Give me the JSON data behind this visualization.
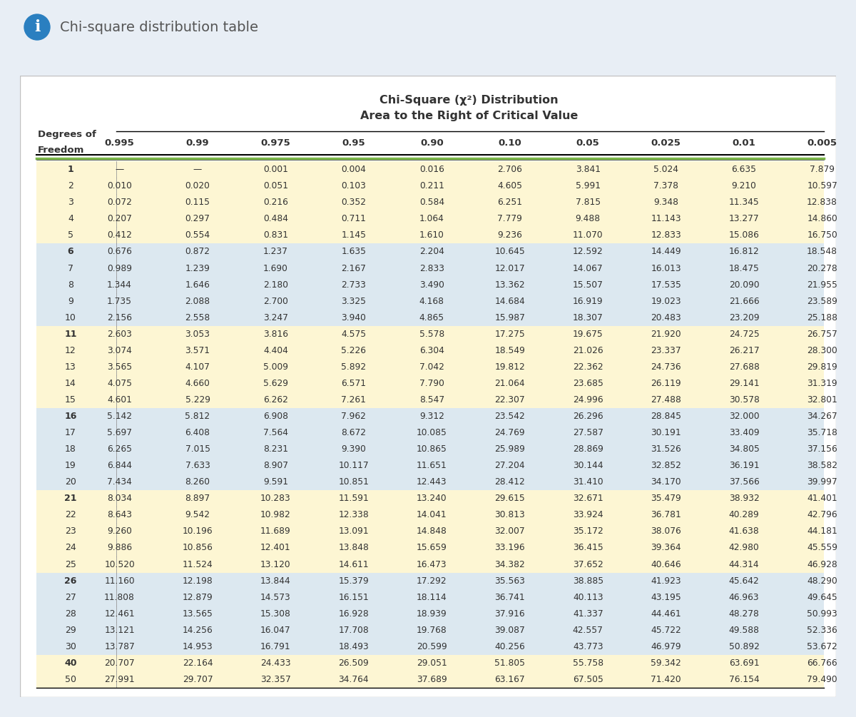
{
  "title_line1": "Chi-Square (χ²) Distribution",
  "title_line2": "Area to the Right of Critical Value",
  "info_header_text": "Chi-square distribution table",
  "col_headers": [
    "0.995",
    "0.99",
    "0.975",
    "0.95",
    "0.90",
    "0.10",
    "0.05",
    "0.025",
    "0.01",
    "0.005"
  ],
  "rows": [
    [
      "1",
      "—",
      "—",
      "0.001",
      "0.004",
      "0.016",
      "2.706",
      "3.841",
      "5.024",
      "6.635",
      "7.879"
    ],
    [
      "2",
      "0.010",
      "0.020",
      "0.051",
      "0.103",
      "0.211",
      "4.605",
      "5.991",
      "7.378",
      "9.210",
      "10.597"
    ],
    [
      "3",
      "0.072",
      "0.115",
      "0.216",
      "0.352",
      "0.584",
      "6.251",
      "7.815",
      "9.348",
      "11.345",
      "12.838"
    ],
    [
      "4",
      "0.207",
      "0.297",
      "0.484",
      "0.711",
      "1.064",
      "7.779",
      "9.488",
      "11.143",
      "13.277",
      "14.860"
    ],
    [
      "5",
      "0.412",
      "0.554",
      "0.831",
      "1.145",
      "1.610",
      "9.236",
      "11.070",
      "12.833",
      "15.086",
      "16.750"
    ],
    [
      "6",
      "0.676",
      "0.872",
      "1.237",
      "1.635",
      "2.204",
      "10.645",
      "12.592",
      "14.449",
      "16.812",
      "18.548"
    ],
    [
      "7",
      "0.989",
      "1.239",
      "1.690",
      "2.167",
      "2.833",
      "12.017",
      "14.067",
      "16.013",
      "18.475",
      "20.278"
    ],
    [
      "8",
      "1.344",
      "1.646",
      "2.180",
      "2.733",
      "3.490",
      "13.362",
      "15.507",
      "17.535",
      "20.090",
      "21.955"
    ],
    [
      "9",
      "1.735",
      "2.088",
      "2.700",
      "3.325",
      "4.168",
      "14.684",
      "16.919",
      "19.023",
      "21.666",
      "23.589"
    ],
    [
      "10",
      "2.156",
      "2.558",
      "3.247",
      "3.940",
      "4.865",
      "15.987",
      "18.307",
      "20.483",
      "23.209",
      "25.188"
    ],
    [
      "11",
      "2.603",
      "3.053",
      "3.816",
      "4.575",
      "5.578",
      "17.275",
      "19.675",
      "21.920",
      "24.725",
      "26.757"
    ],
    [
      "12",
      "3.074",
      "3.571",
      "4.404",
      "5.226",
      "6.304",
      "18.549",
      "21.026",
      "23.337",
      "26.217",
      "28.300"
    ],
    [
      "13",
      "3.565",
      "4.107",
      "5.009",
      "5.892",
      "7.042",
      "19.812",
      "22.362",
      "24.736",
      "27.688",
      "29.819"
    ],
    [
      "14",
      "4.075",
      "4.660",
      "5.629",
      "6.571",
      "7.790",
      "21.064",
      "23.685",
      "26.119",
      "29.141",
      "31.319"
    ],
    [
      "15",
      "4.601",
      "5.229",
      "6.262",
      "7.261",
      "8.547",
      "22.307",
      "24.996",
      "27.488",
      "30.578",
      "32.801"
    ],
    [
      "16",
      "5.142",
      "5.812",
      "6.908",
      "7.962",
      "9.312",
      "23.542",
      "26.296",
      "28.845",
      "32.000",
      "34.267"
    ],
    [
      "17",
      "5.697",
      "6.408",
      "7.564",
      "8.672",
      "10.085",
      "24.769",
      "27.587",
      "30.191",
      "33.409",
      "35.718"
    ],
    [
      "18",
      "6.265",
      "7.015",
      "8.231",
      "9.390",
      "10.865",
      "25.989",
      "28.869",
      "31.526",
      "34.805",
      "37.156"
    ],
    [
      "19",
      "6.844",
      "7.633",
      "8.907",
      "10.117",
      "11.651",
      "27.204",
      "30.144",
      "32.852",
      "36.191",
      "38.582"
    ],
    [
      "20",
      "7.434",
      "8.260",
      "9.591",
      "10.851",
      "12.443",
      "28.412",
      "31.410",
      "34.170",
      "37.566",
      "39.997"
    ],
    [
      "21",
      "8.034",
      "8.897",
      "10.283",
      "11.591",
      "13.240",
      "29.615",
      "32.671",
      "35.479",
      "38.932",
      "41.401"
    ],
    [
      "22",
      "8.643",
      "9.542",
      "10.982",
      "12.338",
      "14.041",
      "30.813",
      "33.924",
      "36.781",
      "40.289",
      "42.796"
    ],
    [
      "23",
      "9.260",
      "10.196",
      "11.689",
      "13.091",
      "14.848",
      "32.007",
      "35.172",
      "38.076",
      "41.638",
      "44.181"
    ],
    [
      "24",
      "9.886",
      "10.856",
      "12.401",
      "13.848",
      "15.659",
      "33.196",
      "36.415",
      "39.364",
      "42.980",
      "45.559"
    ],
    [
      "25",
      "10.520",
      "11.524",
      "13.120",
      "14.611",
      "16.473",
      "34.382",
      "37.652",
      "40.646",
      "44.314",
      "46.928"
    ],
    [
      "26",
      "11.160",
      "12.198",
      "13.844",
      "15.379",
      "17.292",
      "35.563",
      "38.885",
      "41.923",
      "45.642",
      "48.290"
    ],
    [
      "27",
      "11.808",
      "12.879",
      "14.573",
      "16.151",
      "18.114",
      "36.741",
      "40.113",
      "43.195",
      "46.963",
      "49.645"
    ],
    [
      "28",
      "12.461",
      "13.565",
      "15.308",
      "16.928",
      "18.939",
      "37.916",
      "41.337",
      "44.461",
      "48.278",
      "50.993"
    ],
    [
      "29",
      "13.121",
      "14.256",
      "16.047",
      "17.708",
      "19.768",
      "39.087",
      "42.557",
      "45.722",
      "49.588",
      "52.336"
    ],
    [
      "30",
      "13.787",
      "14.953",
      "16.791",
      "18.493",
      "20.599",
      "40.256",
      "43.773",
      "46.979",
      "50.892",
      "53.672"
    ],
    [
      "40",
      "20.707",
      "22.164",
      "24.433",
      "26.509",
      "29.051",
      "51.805",
      "55.758",
      "59.342",
      "63.691",
      "66.766"
    ],
    [
      "50",
      "27.991",
      "29.707",
      "32.357",
      "34.764",
      "37.689",
      "63.167",
      "67.505",
      "71.420",
      "76.154",
      "79.490"
    ]
  ],
  "row_colors": [
    "#fdf6d3",
    "#fdf6d3",
    "#fdf6d3",
    "#fdf6d3",
    "#fdf6d3",
    "#dce8f0",
    "#dce8f0",
    "#dce8f0",
    "#dce8f0",
    "#dce8f0",
    "#fdf6d3",
    "#fdf6d3",
    "#fdf6d3",
    "#fdf6d3",
    "#fdf6d3",
    "#dce8f0",
    "#dce8f0",
    "#dce8f0",
    "#dce8f0",
    "#dce8f0",
    "#fdf6d3",
    "#fdf6d3",
    "#fdf6d3",
    "#fdf6d3",
    "#fdf6d3",
    "#dce8f0",
    "#dce8f0",
    "#dce8f0",
    "#dce8f0",
    "#dce8f0",
    "#fdf6d3",
    "#fdf6d3"
  ],
  "bold_dfs": [
    1,
    6,
    11,
    16,
    21,
    26,
    40
  ],
  "page_bg": "#e8eef5",
  "table_outer_bg": "#f5f5f5",
  "card_bg": "#ffffff",
  "green_line_color": "#7ab648",
  "info_bar_bg": "#dce8f5",
  "info_icon_color": "#2a7fc0",
  "text_color": "#333333"
}
